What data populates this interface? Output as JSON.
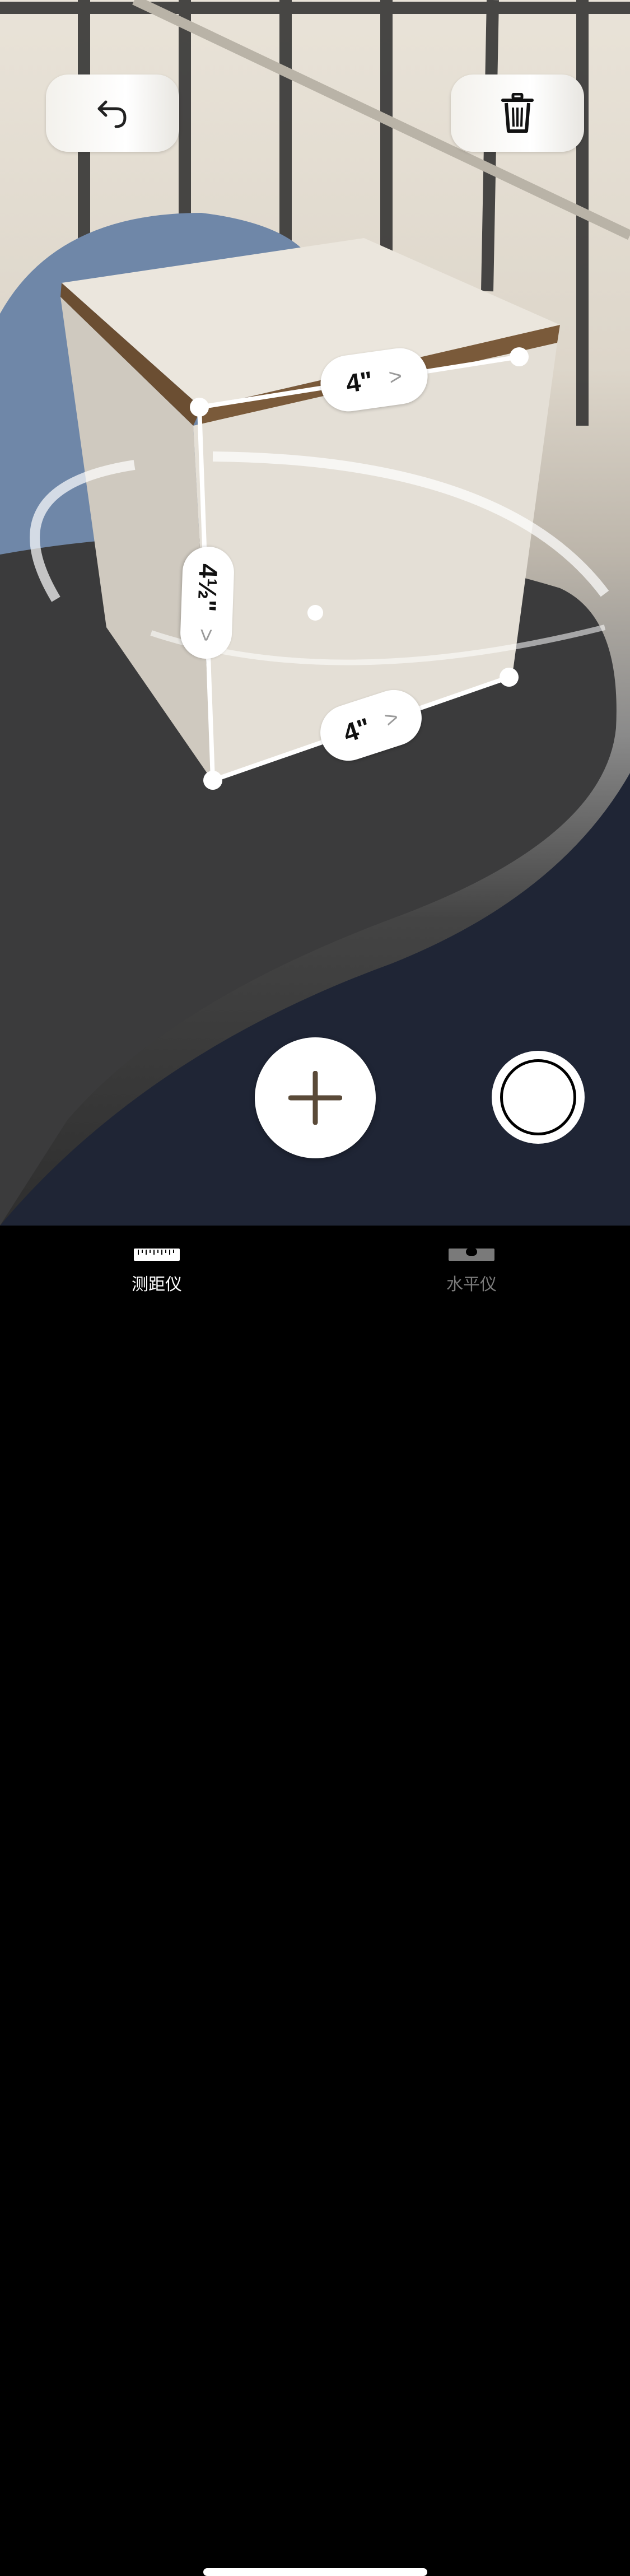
{
  "measurements": {
    "top_edge": "4\"",
    "vertical_edge": "4½\"",
    "bottom_edge": "4\"",
    "chevron": ">"
  },
  "tabs": [
    {
      "label": "测距仪"
    },
    {
      "label": "水平仪"
    }
  ],
  "colors": {
    "tab_active": "#ffffff",
    "tab_inactive": "#7a7a7a",
    "accent_icon": "#5a4a38"
  }
}
